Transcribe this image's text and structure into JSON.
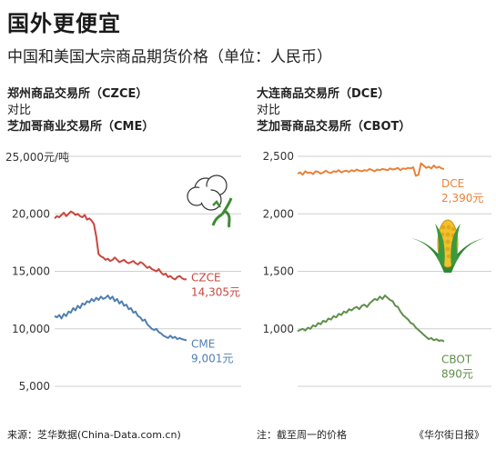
{
  "header": {
    "title": "国外更便宜",
    "subtitle": "中国和美国大宗商品期货价格（单位：人民币）"
  },
  "footer": {
    "source": "来源：芝华数据(China-Data.com.cn)",
    "note": "注：截至周一的价格",
    "brand": "《华尔街日报》"
  },
  "colors": {
    "red": "#c8473d",
    "blue": "#4f7fb0",
    "orange": "#e8823a",
    "green": "#5e8f4a",
    "grid": "#cfcfcf"
  },
  "chart_data": [
    {
      "type": "line",
      "header": {
        "line1": "郑州商品交易所（CZCE）",
        "line2": "对比",
        "line3": "芝加哥商业交易所（CME）"
      },
      "y_unit_label": "25,000元/吨",
      "ylim": [
        5000,
        25000
      ],
      "yticks": [
        5000,
        10000,
        15000,
        20000,
        25000
      ],
      "ytick_labels": [
        "5,000",
        "10,000",
        "15,000",
        "20,000",
        ""
      ],
      "icon": "cotton-icon",
      "series": [
        {
          "name": "CZCE",
          "color": "#c8473d",
          "end_label": "14,305元",
          "values": [
            19600,
            19800,
            19700,
            19900,
            20100,
            19800,
            20000,
            20200,
            20100,
            19900,
            20000,
            19800,
            19700,
            19900,
            19500,
            19600,
            19400,
            19100,
            18000,
            16500,
            16300,
            16200,
            16000,
            16100,
            15900,
            16000,
            16200,
            16000,
            15800,
            15900,
            16000,
            15800,
            15700,
            15800,
            15900,
            15700,
            15600,
            15800,
            15700,
            15500,
            15300,
            15400,
            15200,
            15100,
            15000,
            15200,
            14900,
            14700,
            14800,
            14500,
            14600,
            14400,
            14300,
            14500,
            14600,
            14400,
            14300,
            14305
          ]
        },
        {
          "name": "CME",
          "color": "#4f7fb0",
          "end_label": "9,001元",
          "values": [
            11100,
            11000,
            11200,
            10900,
            11300,
            11100,
            11500,
            11400,
            11800,
            11600,
            12000,
            11800,
            12200,
            12100,
            12400,
            12300,
            12600,
            12400,
            12700,
            12500,
            12800,
            12600,
            12700,
            12900,
            12600,
            12800,
            12400,
            12600,
            12200,
            12400,
            12000,
            12100,
            11700,
            11800,
            11400,
            11500,
            11100,
            11000,
            10700,
            10800,
            10400,
            10200,
            10000,
            9900,
            10000,
            9700,
            9600,
            9400,
            9300,
            9200,
            9400,
            9200,
            9300,
            9100,
            9200,
            9100,
            9050,
            9001
          ]
        }
      ]
    },
    {
      "type": "line",
      "header": {
        "line1": "大连商品交易所（DCE）",
        "line2": "对比",
        "line3": "芝加哥商品交易所（CBOT）"
      },
      "y_unit_label": "",
      "ylim": [
        500,
        2500
      ],
      "yticks": [
        500,
        1000,
        1500,
        2000,
        2500
      ],
      "ytick_labels": [
        "",
        "1,000",
        "1,500",
        "2,000",
        "2,500"
      ],
      "icon": "corn-icon",
      "series": [
        {
          "name": "DCE",
          "color": "#e8823a",
          "end_label": "2,390元",
          "values": [
            2350,
            2360,
            2340,
            2370,
            2355,
            2360,
            2345,
            2370,
            2365,
            2350,
            2360,
            2375,
            2360,
            2355,
            2370,
            2365,
            2380,
            2360,
            2370,
            2375,
            2365,
            2380,
            2370,
            2385,
            2375,
            2370,
            2380,
            2375,
            2390,
            2380,
            2370,
            2385,
            2380,
            2390,
            2385,
            2380,
            2395,
            2385,
            2390,
            2400,
            2380,
            2395,
            2390,
            2400,
            2395,
            2405,
            2330,
            2340,
            2440,
            2420,
            2400,
            2410,
            2395,
            2420,
            2400,
            2410,
            2395,
            2390
          ]
        },
        {
          "name": "CBOT",
          "color": "#5e8f4a",
          "end_label": "890元",
          "values": [
            980,
            990,
            1000,
            985,
            1010,
            1000,
            1030,
            1020,
            1050,
            1040,
            1070,
            1060,
            1090,
            1080,
            1110,
            1100,
            1130,
            1120,
            1150,
            1140,
            1170,
            1160,
            1180,
            1190,
            1170,
            1200,
            1210,
            1190,
            1220,
            1240,
            1260,
            1250,
            1280,
            1260,
            1290,
            1270,
            1250,
            1240,
            1200,
            1190,
            1150,
            1120,
            1100,
            1080,
            1050,
            1040,
            1010,
            990,
            970,
            950,
            930,
            910,
            920,
            900,
            910,
            895,
            900,
            890
          ]
        }
      ]
    }
  ]
}
